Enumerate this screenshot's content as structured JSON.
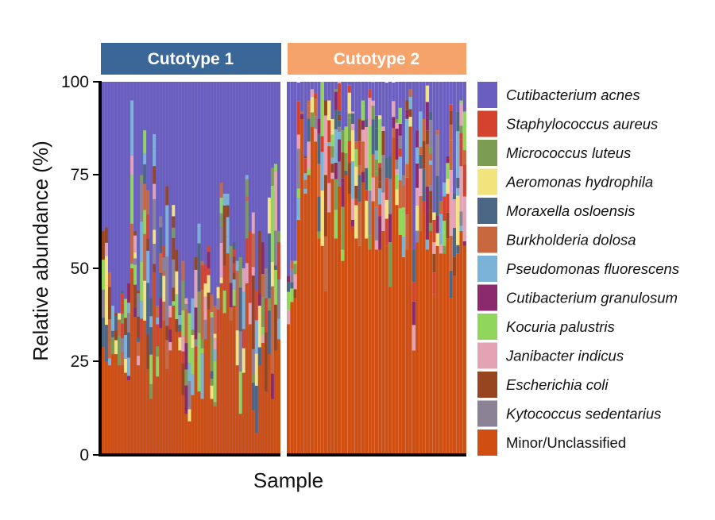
{
  "chart_data": {
    "type": "bar",
    "stacked": true,
    "xlabel": "Sample",
    "ylabel": "Relative abundance (%)",
    "ylim": [
      0,
      100
    ],
    "yticks": [
      0,
      25,
      50,
      75,
      100
    ],
    "panels": [
      {
        "label": "Cutotype 1",
        "strip_color": "#3b6798",
        "samples": 56,
        "minor_unclassified": [
          29,
          25,
          24,
          27,
          27,
          24,
          24,
          22,
          20,
          50,
          37,
          24,
          31,
          36,
          23,
          15,
          49,
          21,
          34,
          36,
          23,
          28,
          40,
          33,
          28,
          16,
          11,
          9,
          16,
          25,
          17,
          15,
          31,
          39,
          15,
          13,
          33,
          46,
          38,
          54,
          36,
          40,
          24,
          11,
          22,
          46,
          35,
          12,
          6,
          24,
          30,
          17,
          27,
          15,
          28,
          31
        ],
        "cutibacterium_acnes": [
          40,
          39,
          51,
          60,
          62,
          62,
          56,
          58,
          54,
          5,
          40,
          56,
          25,
          13,
          29,
          58,
          14,
          60,
          36,
          44,
          28,
          60,
          33,
          45,
          62,
          48,
          58,
          62,
          58,
          47,
          38,
          48,
          49,
          44,
          57,
          60,
          55,
          27,
          30,
          30,
          44,
          43,
          48,
          47,
          50,
          25,
          40,
          35,
          56,
          40,
          43,
          50,
          31,
          23,
          22,
          40
        ]
      },
      {
        "label": "Cutotype 2",
        "strip_color": "#f5a36a",
        "samples": 53,
        "minor_unclassified": [
          35,
          41,
          42,
          63,
          90,
          70,
          75,
          88,
          84,
          58,
          56,
          44,
          65,
          74,
          58,
          72,
          52,
          75,
          70,
          60,
          58,
          56,
          73,
          58,
          55,
          68,
          55,
          55,
          60,
          56,
          45,
          85,
          67,
          59,
          53,
          55,
          88,
          28,
          57,
          60,
          65,
          55,
          60,
          43,
          56,
          54,
          54,
          58,
          42,
          48,
          54,
          60,
          56
        ],
        "cutibacterium_acnes": [
          52,
          48,
          48,
          5,
          8,
          20,
          5,
          2,
          3,
          10,
          0,
          5,
          5,
          10,
          2,
          0,
          13,
          12,
          1,
          8,
          16,
          10,
          5,
          10,
          2,
          5,
          9,
          9,
          12,
          20,
          20,
          5,
          10,
          7,
          25,
          5,
          2,
          45,
          13,
          8,
          10,
          1,
          8,
          35,
          13,
          32,
          27,
          20,
          6,
          30,
          8,
          5,
          8
        ]
      }
    ],
    "legend": [
      {
        "name": "Cutibacterium acnes",
        "color": "#6a5fc0",
        "italic": true
      },
      {
        "name": "Staphylococcus aureus",
        "color": "#d5432e",
        "italic": true
      },
      {
        "name": "Micrococcus luteus",
        "color": "#7b9c51",
        "italic": true
      },
      {
        "name": "Aeromonas hydrophila",
        "color": "#f3e37c",
        "italic": true
      },
      {
        "name": "Moraxella osloensis",
        "color": "#4b6785",
        "italic": true
      },
      {
        "name": "Burkholderia dolosa",
        "color": "#c8683e",
        "italic": true
      },
      {
        "name": "Pseudomonas fluorescens",
        "color": "#79b3d8",
        "italic": true
      },
      {
        "name": "Cutibacterium granulosum",
        "color": "#8a2a6c",
        "italic": true
      },
      {
        "name": "Kocuria palustris",
        "color": "#8fd65a",
        "italic": true
      },
      {
        "name": "Janibacter indicus",
        "color": "#e4a3b4",
        "italic": true
      },
      {
        "name": "Escherichia coli",
        "color": "#97451f",
        "italic": true
      },
      {
        "name": "Kytococcus sedentarius",
        "color": "#8c8296",
        "italic": true
      },
      {
        "name": "Minor/Unclassified",
        "color": "#cf4f12",
        "italic": false
      }
    ],
    "legend_position": "right",
    "grid": false
  }
}
